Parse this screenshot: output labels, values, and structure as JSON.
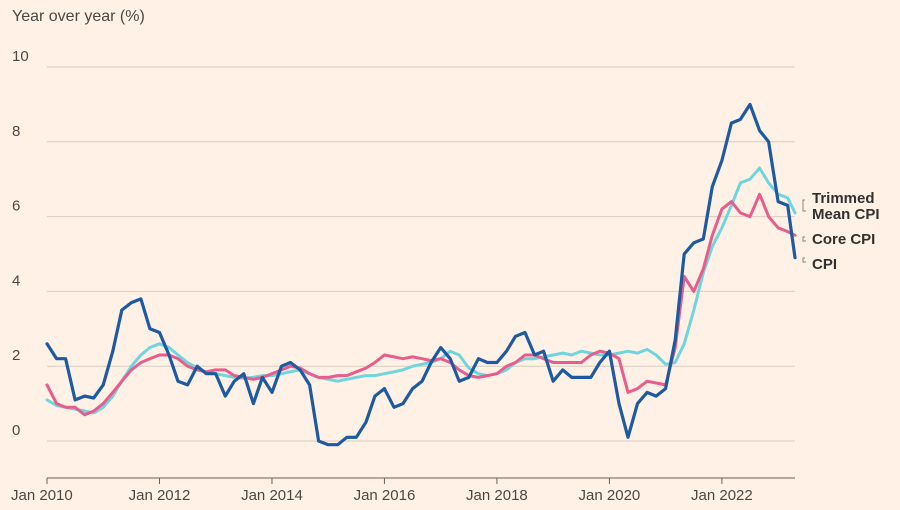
{
  "chart_data": {
    "type": "line",
    "title": "",
    "subtitle": "Year over year (%)",
    "xlabel": "",
    "ylabel": "Year over year (%)",
    "xlim": [
      2010.0,
      2023.3
    ],
    "ylim": [
      -1,
      10
    ],
    "y_ticks": [
      0,
      2,
      4,
      6,
      8,
      10
    ],
    "x_ticks": [
      {
        "value": 2010,
        "label": "Jan 2010"
      },
      {
        "value": 2012,
        "label": "Jan 2012"
      },
      {
        "value": 2014,
        "label": "Jan 2014"
      },
      {
        "value": 2016,
        "label": "Jan 2016"
      },
      {
        "value": 2018,
        "label": "Jan 2018"
      },
      {
        "value": 2020,
        "label": "Jan 2020"
      },
      {
        "value": 2022,
        "label": "Jan 2022"
      }
    ],
    "legend_position": "right",
    "series": [
      {
        "name": "Trimmed Mean CPI",
        "legend_lines": [
          "Trimmed",
          "Mean CPI"
        ],
        "color": "#6fd5de",
        "x": [
          2010.0,
          2010.17,
          2010.33,
          2010.5,
          2010.67,
          2010.83,
          2011.0,
          2011.17,
          2011.33,
          2011.5,
          2011.67,
          2011.83,
          2012.0,
          2012.17,
          2012.33,
          2012.5,
          2012.67,
          2012.83,
          2013.0,
          2013.17,
          2013.33,
          2013.5,
          2013.67,
          2013.83,
          2014.0,
          2014.17,
          2014.33,
          2014.5,
          2014.67,
          2014.83,
          2015.0,
          2015.17,
          2015.33,
          2015.5,
          2015.67,
          2015.83,
          2016.0,
          2016.17,
          2016.33,
          2016.5,
          2016.67,
          2016.83,
          2017.0,
          2017.17,
          2017.33,
          2017.5,
          2017.67,
          2017.83,
          2018.0,
          2018.17,
          2018.33,
          2018.5,
          2018.67,
          2018.83,
          2019.0,
          2019.17,
          2019.33,
          2019.5,
          2019.67,
          2019.83,
          2020.0,
          2020.17,
          2020.33,
          2020.5,
          2020.67,
          2020.83,
          2021.0,
          2021.17,
          2021.33,
          2021.5,
          2021.67,
          2021.83,
          2022.0,
          2022.17,
          2022.33,
          2022.5,
          2022.67,
          2022.83,
          2023.0,
          2023.17,
          2023.3
        ],
        "values": [
          1.1,
          0.95,
          0.9,
          0.85,
          0.8,
          0.75,
          0.9,
          1.2,
          1.6,
          2.0,
          2.3,
          2.5,
          2.6,
          2.5,
          2.3,
          2.1,
          1.95,
          1.85,
          1.8,
          1.75,
          1.7,
          1.68,
          1.7,
          1.75,
          1.75,
          1.8,
          1.85,
          1.9,
          1.8,
          1.7,
          1.65,
          1.6,
          1.65,
          1.7,
          1.75,
          1.75,
          1.8,
          1.85,
          1.9,
          2.0,
          2.05,
          2.1,
          2.2,
          2.4,
          2.3,
          1.95,
          1.8,
          1.75,
          1.8,
          1.9,
          2.1,
          2.2,
          2.2,
          2.25,
          2.3,
          2.35,
          2.3,
          2.4,
          2.35,
          2.3,
          2.3,
          2.35,
          2.4,
          2.35,
          2.45,
          2.3,
          2.05,
          2.1,
          2.6,
          3.5,
          4.5,
          5.2,
          5.7,
          6.3,
          6.9,
          7.0,
          7.3,
          6.9,
          6.6,
          6.5,
          6.1
        ]
      },
      {
        "name": "Core CPI",
        "legend_lines": [
          "Core CPI"
        ],
        "color": "#e95d8c",
        "x": [
          2010.0,
          2010.17,
          2010.33,
          2010.5,
          2010.67,
          2010.83,
          2011.0,
          2011.17,
          2011.33,
          2011.5,
          2011.67,
          2011.83,
          2012.0,
          2012.17,
          2012.33,
          2012.5,
          2012.67,
          2012.83,
          2013.0,
          2013.17,
          2013.33,
          2013.5,
          2013.67,
          2013.83,
          2014.0,
          2014.17,
          2014.33,
          2014.5,
          2014.67,
          2014.83,
          2015.0,
          2015.17,
          2015.33,
          2015.5,
          2015.67,
          2015.83,
          2016.0,
          2016.17,
          2016.33,
          2016.5,
          2016.67,
          2016.83,
          2017.0,
          2017.17,
          2017.33,
          2017.5,
          2017.67,
          2017.83,
          2018.0,
          2018.17,
          2018.33,
          2018.5,
          2018.67,
          2018.83,
          2019.0,
          2019.17,
          2019.33,
          2019.5,
          2019.67,
          2019.83,
          2020.0,
          2020.17,
          2020.33,
          2020.5,
          2020.67,
          2020.83,
          2021.0,
          2021.17,
          2021.33,
          2021.5,
          2021.67,
          2021.83,
          2022.0,
          2022.17,
          2022.33,
          2022.5,
          2022.67,
          2022.83,
          2023.0,
          2023.17,
          2023.3
        ],
        "values": [
          1.5,
          1.0,
          0.9,
          0.9,
          0.7,
          0.8,
          1.0,
          1.3,
          1.6,
          1.9,
          2.1,
          2.2,
          2.3,
          2.3,
          2.2,
          2.0,
          1.9,
          1.85,
          1.9,
          1.9,
          1.75,
          1.7,
          1.65,
          1.7,
          1.8,
          1.9,
          2.0,
          1.95,
          1.8,
          1.7,
          1.7,
          1.75,
          1.75,
          1.85,
          1.95,
          2.1,
          2.3,
          2.25,
          2.2,
          2.25,
          2.2,
          2.15,
          2.2,
          2.1,
          1.9,
          1.75,
          1.7,
          1.75,
          1.8,
          2.0,
          2.1,
          2.3,
          2.3,
          2.2,
          2.1,
          2.1,
          2.1,
          2.1,
          2.3,
          2.4,
          2.35,
          2.2,
          1.3,
          1.4,
          1.6,
          1.55,
          1.5,
          2.5,
          4.4,
          4.0,
          4.6,
          5.5,
          6.2,
          6.4,
          6.1,
          6.0,
          6.6,
          6.0,
          5.7,
          5.6,
          5.5
        ]
      },
      {
        "name": "CPI",
        "legend_lines": [
          "CPI"
        ],
        "color": "#1e5aa0",
        "x": [
          2010.0,
          2010.17,
          2010.33,
          2010.5,
          2010.67,
          2010.83,
          2011.0,
          2011.17,
          2011.33,
          2011.5,
          2011.67,
          2011.83,
          2012.0,
          2012.17,
          2012.33,
          2012.5,
          2012.67,
          2012.83,
          2013.0,
          2013.17,
          2013.33,
          2013.5,
          2013.67,
          2013.83,
          2014.0,
          2014.17,
          2014.33,
          2014.5,
          2014.67,
          2014.83,
          2015.0,
          2015.17,
          2015.33,
          2015.5,
          2015.67,
          2015.83,
          2016.0,
          2016.17,
          2016.33,
          2016.5,
          2016.67,
          2016.83,
          2017.0,
          2017.17,
          2017.33,
          2017.5,
          2017.67,
          2017.83,
          2018.0,
          2018.17,
          2018.33,
          2018.5,
          2018.67,
          2018.83,
          2019.0,
          2019.17,
          2019.33,
          2019.5,
          2019.67,
          2019.83,
          2020.0,
          2020.17,
          2020.33,
          2020.5,
          2020.67,
          2020.83,
          2021.0,
          2021.17,
          2021.33,
          2021.5,
          2021.67,
          2021.83,
          2022.0,
          2022.17,
          2022.33,
          2022.5,
          2022.67,
          2022.83,
          2023.0,
          2023.17,
          2023.3
        ],
        "values": [
          2.6,
          2.2,
          2.2,
          1.1,
          1.2,
          1.15,
          1.5,
          2.4,
          3.5,
          3.7,
          3.8,
          3.0,
          2.9,
          2.3,
          1.6,
          1.5,
          2.0,
          1.8,
          1.8,
          1.2,
          1.6,
          1.8,
          1.0,
          1.7,
          1.3,
          2.0,
          2.1,
          1.9,
          1.5,
          0.0,
          -0.1,
          -0.1,
          0.1,
          0.1,
          0.5,
          1.2,
          1.4,
          0.9,
          1.0,
          1.4,
          1.6,
          2.1,
          2.5,
          2.2,
          1.6,
          1.7,
          2.2,
          2.1,
          2.1,
          2.4,
          2.8,
          2.9,
          2.3,
          2.4,
          1.6,
          1.9,
          1.7,
          1.7,
          1.7,
          2.1,
          2.4,
          1.0,
          0.1,
          1.0,
          1.3,
          1.2,
          1.4,
          2.7,
          5.0,
          5.3,
          5.4,
          6.8,
          7.5,
          8.5,
          8.6,
          9.0,
          8.3,
          8.0,
          6.4,
          6.3,
          4.9
        ]
      }
    ]
  }
}
